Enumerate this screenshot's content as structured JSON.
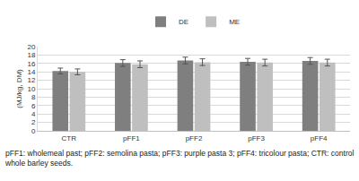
{
  "chart_data": {
    "type": "bar",
    "y_label": "(MJ/kg, DM)",
    "categories": [
      "CTR",
      "pFF1",
      "pFF2",
      "pFF3",
      "pFF4"
    ],
    "series": [
      {
        "name": "DE",
        "color": "#7f7f7f",
        "values": [
          14.2,
          16.1,
          16.7,
          16.4,
          16.6
        ],
        "errors": [
          0.7,
          0.8,
          0.8,
          0.8,
          0.8
        ]
      },
      {
        "name": "ME",
        "color": "#bfbfbf",
        "values": [
          14.0,
          15.8,
          16.3,
          16.2,
          16.2
        ],
        "errors": [
          0.7,
          0.8,
          0.8,
          0.8,
          0.8
        ]
      }
    ],
    "ylim": [
      0,
      20
    ],
    "yticks": [
      0,
      2,
      4,
      6,
      8,
      10,
      12,
      14,
      16,
      18,
      20
    ],
    "grid": true,
    "legend": "top",
    "caption": "pFF1: wholemeal past; pFF2: semolina pasta; pFF3: purple pasta 3; pFF4: tricolour pasta; CTR: control whole barley seeds."
  }
}
